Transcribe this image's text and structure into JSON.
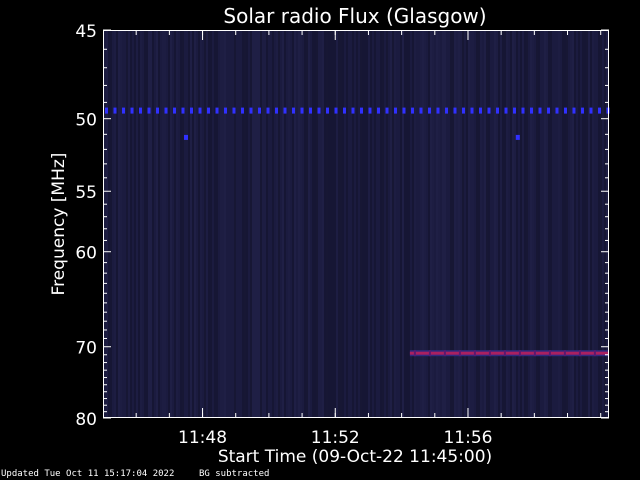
{
  "chart_data": {
    "type": "heatmap",
    "title": "Solar radio Flux (Glasgow)",
    "xlabel": "Start Time (09-Oct-22 11:45:00)",
    "ylabel": "Frequency [MHz]",
    "x_start": "11:45:00",
    "x_end": "12:00:15",
    "x_ticks": [
      "11:48",
      "11:52",
      "11:56"
    ],
    "y_ticks": [
      45,
      50,
      55,
      60,
      70,
      80
    ],
    "y_range": [
      45,
      80
    ],
    "y_scale": "reciprocal",
    "background_color": "#1a1a3a",
    "features": [
      {
        "name": "periodic interference",
        "frequency_mhz": 49.5,
        "time_start": "11:45:00",
        "time_end": "12:00:15",
        "color": "#3030ff"
      },
      {
        "name": "interference spot",
        "frequency_mhz": 51.2,
        "time": "11:47:30",
        "color": "#3030ff"
      },
      {
        "name": "interference spot",
        "frequency_mhz": 51.2,
        "time": "11:57:30",
        "color": "#3030ff"
      },
      {
        "name": "interference band",
        "frequency_mhz": 70.8,
        "time_start": "11:54:15",
        "time_end": "12:00:15",
        "color": "#aa2060"
      }
    ]
  },
  "footer": {
    "updated": "Updated Tue Oct 11 15:17:04 2022",
    "note": "BG subtracted"
  }
}
